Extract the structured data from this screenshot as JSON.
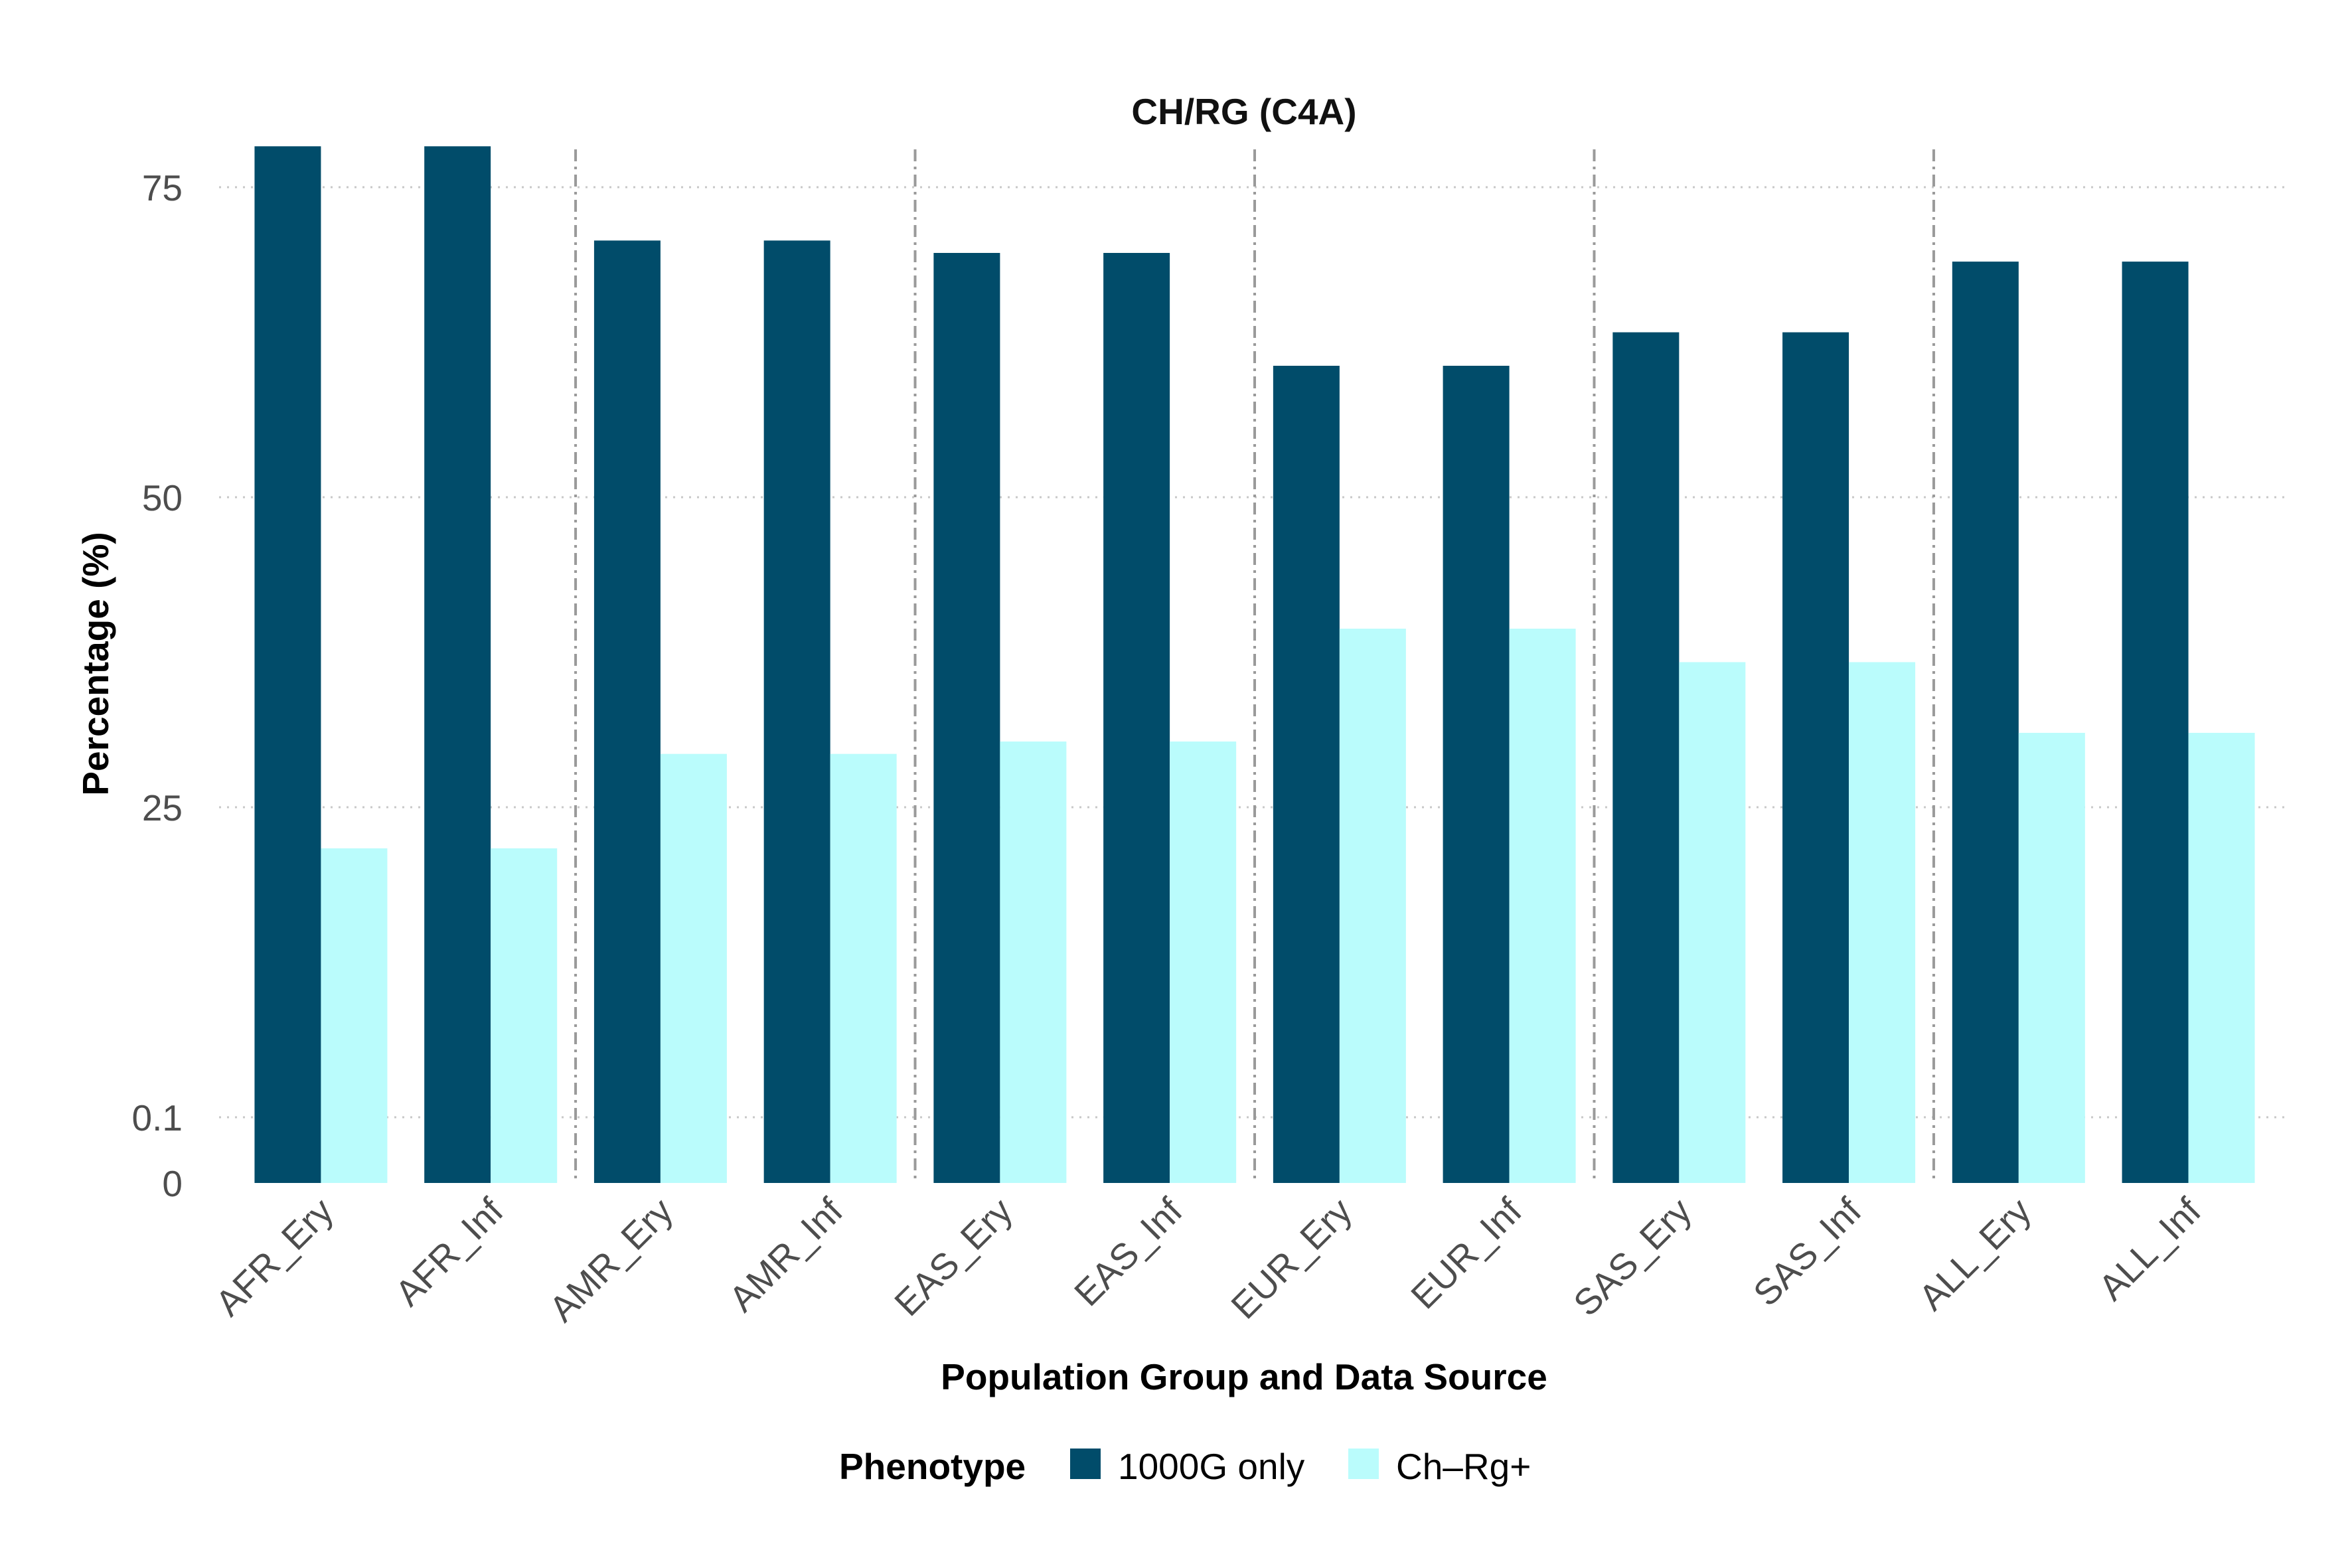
{
  "chart_data": {
    "type": "bar",
    "title": "CH/RG (C4A)",
    "xlabel": "Population Group and Data Source",
    "ylabel": "Percentage (%)",
    "y_ticks": [
      0,
      0.1,
      25,
      50,
      75
    ],
    "y_tick_labels": [
      "0",
      "0.1",
      "25",
      "50",
      "75"
    ],
    "y_scale": "nonlinear: 0 to 0.1 expanded, linear from 0.1 upward",
    "ylim": [
      0,
      78
    ],
    "grid": "horizontal dotted",
    "group_separators": "dash-dot vertical lines between population groups",
    "categories": [
      "AFR_Ery",
      "AFR_Inf",
      "AMR_Ery",
      "AMR_Inf",
      "EAS_Ery",
      "EAS_Inf",
      "EUR_Ery",
      "EUR_Inf",
      "SAS_Ery",
      "SAS_Inf",
      "ALL_Ery",
      "ALL_Inf"
    ],
    "series": [
      {
        "name": "1000G only",
        "color": "#014c6a",
        "values": [
          78.3,
          78.3,
          70.7,
          70.7,
          69.7,
          69.7,
          60.6,
          60.6,
          63.3,
          63.3,
          69.0,
          69.0
        ]
      },
      {
        "name": "Ch–Rg+",
        "color": "#bafcfc",
        "values": [
          21.7,
          21.7,
          29.3,
          29.3,
          30.3,
          30.3,
          39.4,
          39.4,
          36.7,
          36.7,
          31.0,
          31.0
        ]
      }
    ],
    "legend": {
      "title": "Phenotype",
      "placement": "bottom"
    }
  }
}
